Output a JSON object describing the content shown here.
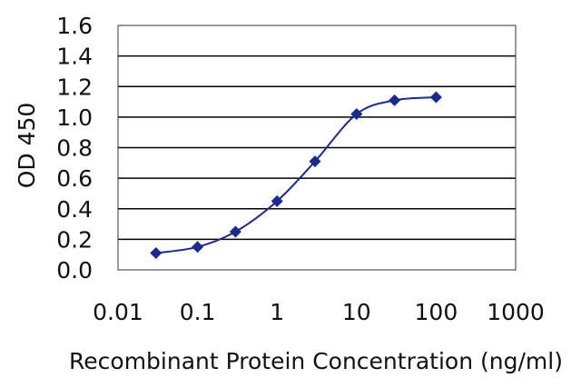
{
  "chart_data": {
    "type": "scatter",
    "title": "",
    "xlabel": "Recombinant Protein Concentration (ng/ml)",
    "ylabel": "OD 450",
    "x_scale": "log",
    "xlim": [
      0.01,
      1000
    ],
    "ylim": [
      0.0,
      1.6
    ],
    "x_ticks": [
      0.01,
      0.1,
      1,
      10,
      100,
      1000
    ],
    "x_tick_labels": [
      "0.01",
      "0.1",
      "1",
      "10",
      "100",
      "1000"
    ],
    "y_ticks": [
      0.0,
      0.2,
      0.4,
      0.6,
      0.8,
      1.0,
      1.2,
      1.4,
      1.6
    ],
    "y_tick_labels": [
      "0.0",
      "0.2",
      "0.4",
      "0.6",
      "0.8",
      "1.0",
      "1.2",
      "1.4",
      "1.6"
    ],
    "grid": "horizontal",
    "line_style": "smoothed",
    "marker": "diamond",
    "color": "#1c2a8c",
    "series": [
      {
        "x": [
          0.03,
          0.1,
          0.3,
          1,
          3,
          10,
          30,
          100
        ],
        "y": [
          0.11,
          0.15,
          0.25,
          0.45,
          0.71,
          1.02,
          1.11,
          1.13
        ]
      }
    ]
  }
}
